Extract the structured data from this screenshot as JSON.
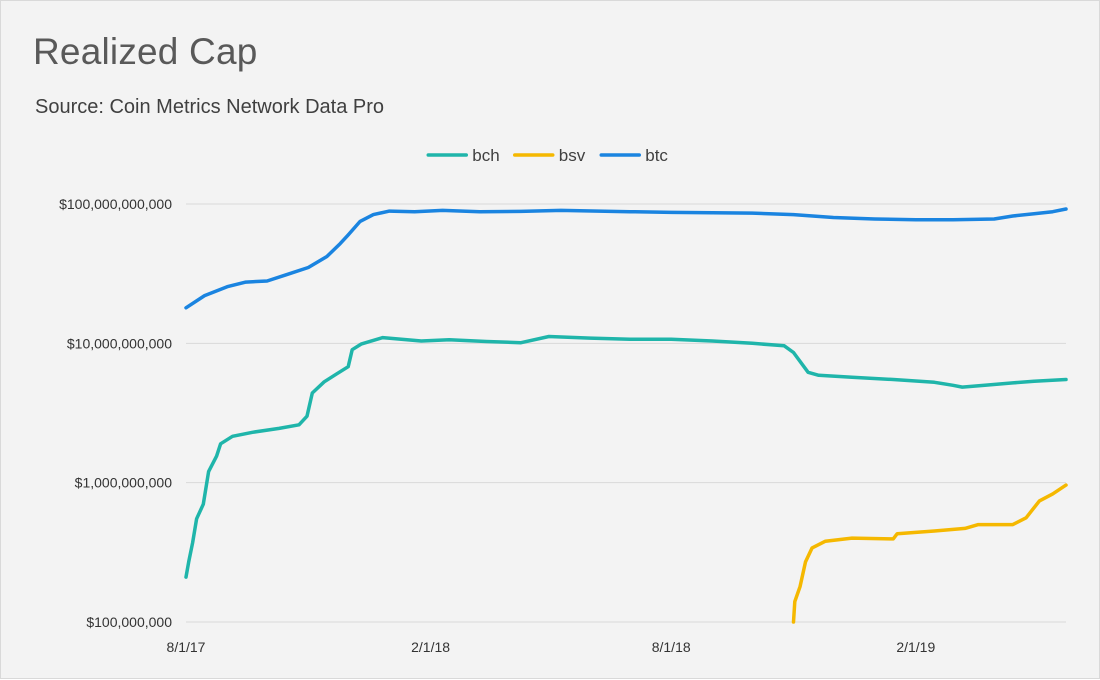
{
  "chart_data": {
    "type": "line",
    "title": "Realized Cap",
    "subtitle": "Source: Coin Metrics Network Data Pro",
    "xlabel": "",
    "ylabel": "",
    "y_scale": "log",
    "ylim": [
      100000000,
      100000000000
    ],
    "y_ticks": [
      {
        "value": 100000000000,
        "label": "$100,000,000,000"
      },
      {
        "value": 10000000000,
        "label": "$10,000,000,000"
      },
      {
        "value": 1000000000,
        "label": "$1,000,000,000"
      },
      {
        "value": 100000000,
        "label": "$100,000,000"
      }
    ],
    "xlim": [
      "2017-08-01",
      "2019-05-25"
    ],
    "x_ticks": [
      {
        "value": "2017-08-01",
        "label": "8/1/17"
      },
      {
        "value": "2018-02-01",
        "label": "2/1/18"
      },
      {
        "value": "2018-08-01",
        "label": "8/1/18"
      },
      {
        "value": "2019-02-01",
        "label": "2/1/19"
      }
    ],
    "grid": "horizontal",
    "legend_position": "top",
    "series": [
      {
        "name": "bch",
        "color": "#1fb5aa",
        "points": [
          [
            "2017-08-01",
            210000000
          ],
          [
            "2017-08-03",
            270000000
          ],
          [
            "2017-08-06",
            370000000
          ],
          [
            "2017-08-09",
            550000000
          ],
          [
            "2017-08-14",
            700000000
          ],
          [
            "2017-08-18",
            1200000000
          ],
          [
            "2017-08-24",
            1550000000
          ],
          [
            "2017-08-27",
            1900000000
          ],
          [
            "2017-09-05",
            2150000000
          ],
          [
            "2017-09-20",
            2300000000
          ],
          [
            "2017-10-10",
            2450000000
          ],
          [
            "2017-10-25",
            2600000000
          ],
          [
            "2017-10-31",
            3000000000
          ],
          [
            "2017-11-04",
            4400000000
          ],
          [
            "2017-11-13",
            5300000000
          ],
          [
            "2017-11-22",
            6000000000
          ],
          [
            "2017-12-01",
            6800000000
          ],
          [
            "2017-12-04",
            9000000000
          ],
          [
            "2017-12-11",
            9900000000
          ],
          [
            "2017-12-27",
            11000000000
          ],
          [
            "2018-01-10",
            10700000000
          ],
          [
            "2018-01-25",
            10400000000
          ],
          [
            "2018-02-15",
            10600000000
          ],
          [
            "2018-03-15",
            10300000000
          ],
          [
            "2018-04-10",
            10100000000
          ],
          [
            "2018-05-01",
            11200000000
          ],
          [
            "2018-06-01",
            10900000000
          ],
          [
            "2018-07-01",
            10700000000
          ],
          [
            "2018-08-01",
            10700000000
          ],
          [
            "2018-09-01",
            10400000000
          ],
          [
            "2018-10-01",
            10000000000
          ],
          [
            "2018-10-25",
            9600000000
          ],
          [
            "2018-11-01",
            8600000000
          ],
          [
            "2018-11-12",
            6200000000
          ],
          [
            "2018-11-20",
            5900000000
          ],
          [
            "2018-12-15",
            5700000000
          ],
          [
            "2019-01-15",
            5500000000
          ],
          [
            "2019-02-15",
            5250000000
          ],
          [
            "2019-03-01",
            5000000000
          ],
          [
            "2019-03-08",
            4850000000
          ],
          [
            "2019-03-25",
            5000000000
          ],
          [
            "2019-04-15",
            5200000000
          ],
          [
            "2019-05-01",
            5350000000
          ],
          [
            "2019-05-25",
            5500000000
          ]
        ]
      },
      {
        "name": "bsv",
        "color": "#f5b800",
        "points": [
          [
            "2018-11-01",
            100000000
          ],
          [
            "2018-11-02",
            140000000
          ],
          [
            "2018-11-06",
            180000000
          ],
          [
            "2018-11-10",
            270000000
          ],
          [
            "2018-11-15",
            340000000
          ],
          [
            "2018-11-25",
            380000000
          ],
          [
            "2018-12-15",
            400000000
          ],
          [
            "2019-01-15",
            395000000
          ],
          [
            "2019-01-18",
            430000000
          ],
          [
            "2019-02-15",
            450000000
          ],
          [
            "2019-03-10",
            470000000
          ],
          [
            "2019-03-20",
            500000000
          ],
          [
            "2019-04-15",
            500000000
          ],
          [
            "2019-04-25",
            560000000
          ],
          [
            "2019-05-05",
            740000000
          ],
          [
            "2019-05-15",
            830000000
          ],
          [
            "2019-05-25",
            960000000
          ]
        ]
      },
      {
        "name": "btc",
        "color": "#1a84e0",
        "points": [
          [
            "2017-08-01",
            18000000000
          ],
          [
            "2017-08-15",
            22000000000
          ],
          [
            "2017-09-01",
            25500000000
          ],
          [
            "2017-09-15",
            27500000000
          ],
          [
            "2017-10-01",
            28000000000
          ],
          [
            "2017-10-15",
            31000000000
          ],
          [
            "2017-11-01",
            35000000000
          ],
          [
            "2017-11-15",
            42000000000
          ],
          [
            "2017-11-25",
            52000000000
          ],
          [
            "2017-12-01",
            60000000000
          ],
          [
            "2017-12-10",
            75000000000
          ],
          [
            "2017-12-20",
            84000000000
          ],
          [
            "2018-01-01",
            89000000000
          ],
          [
            "2018-01-20",
            88000000000
          ],
          [
            "2018-02-10",
            90000000000
          ],
          [
            "2018-03-10",
            88000000000
          ],
          [
            "2018-04-10",
            88500000000
          ],
          [
            "2018-05-10",
            90000000000
          ],
          [
            "2018-07-01",
            88000000000
          ],
          [
            "2018-08-01",
            87000000000
          ],
          [
            "2018-09-01",
            86500000000
          ],
          [
            "2018-10-01",
            86000000000
          ],
          [
            "2018-11-01",
            84000000000
          ],
          [
            "2018-12-01",
            80000000000
          ],
          [
            "2019-01-01",
            78000000000
          ],
          [
            "2019-02-01",
            77000000000
          ],
          [
            "2019-03-01",
            77000000000
          ],
          [
            "2019-04-01",
            78000000000
          ],
          [
            "2019-04-15",
            82000000000
          ],
          [
            "2019-05-01",
            85000000000
          ],
          [
            "2019-05-15",
            88000000000
          ],
          [
            "2019-05-25",
            92000000000
          ]
        ]
      }
    ]
  }
}
